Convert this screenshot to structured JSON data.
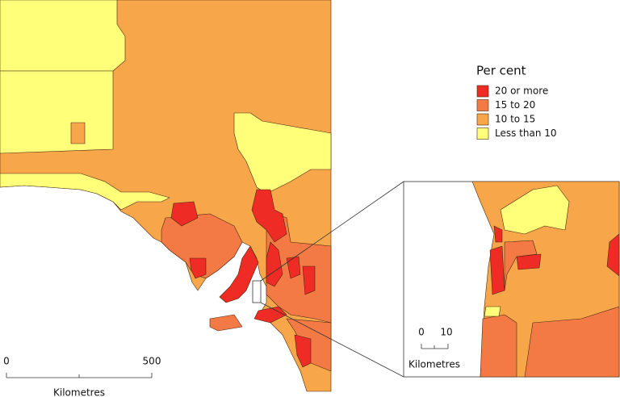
{
  "legend": {
    "title": "Per cent",
    "items": [
      {
        "label": "20 or more",
        "color": "#ee2b24"
      },
      {
        "label": "15 to 20",
        "color": "#f47a45"
      },
      {
        "label": "10 to 15",
        "color": "#f7a64a"
      },
      {
        "label": "Less than 10",
        "color": "#ffff7a"
      }
    ]
  },
  "scale_bar": {
    "labels": [
      "0",
      "500"
    ],
    "unit": "Kilometres"
  },
  "inset_scale_bar": {
    "labels": [
      "0",
      "10"
    ],
    "unit": "Kilometres"
  }
}
